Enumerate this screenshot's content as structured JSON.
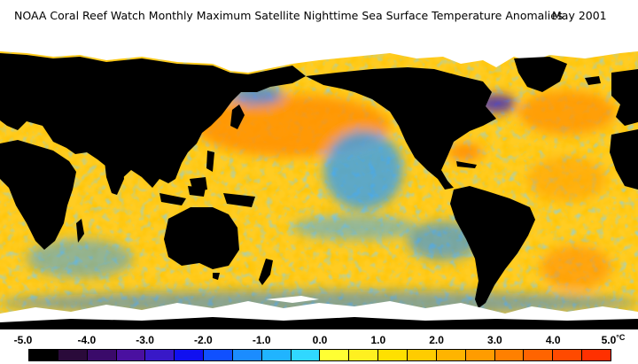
{
  "header": {
    "title": "NOAA Coral Reef Watch Monthly Maximum Satellite Nighttime Sea Surface Temperature Anomalies",
    "date": "May 2001"
  },
  "legend": {
    "ticks": [
      "-5.0",
      "-4.0",
      "-3.0",
      "-2.0",
      "-1.0",
      "0.0",
      "1.0",
      "2.0",
      "3.0",
      "4.0",
      "5.0"
    ],
    "unit": "°C",
    "colors": [
      "#000000",
      "#2a0a3a",
      "#3a0a6a",
      "#4a10a0",
      "#3818c8",
      "#1010f0",
      "#1050ff",
      "#1b8cff",
      "#20b4ff",
      "#30d8ff",
      "#ffff33",
      "#fff020",
      "#ffe000",
      "#ffcc00",
      "#ffb400",
      "#ff9c00",
      "#ff8000",
      "#ff6400",
      "#ff4a00",
      "#ff3000"
    ]
  },
  "map": {
    "land_color": "#000000",
    "ice_color": "#ffffff",
    "ocean_base_color": "#ffcc22"
  }
}
